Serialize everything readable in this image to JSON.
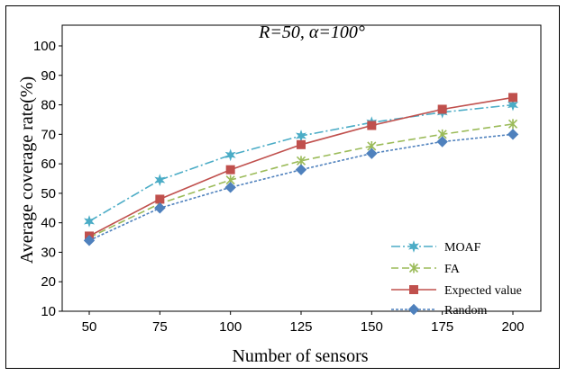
{
  "chart_data": {
    "type": "line",
    "title": "R=50, α=100°",
    "xlabel": "Number of sensors",
    "ylabel": "Average coverage rate(%)",
    "x": [
      50,
      75,
      100,
      125,
      150,
      175,
      200
    ],
    "ylim": [
      10,
      100
    ],
    "yticks": [
      10,
      20,
      30,
      40,
      50,
      60,
      70,
      80,
      90,
      100
    ],
    "grid": false,
    "legend_position": "bottom-right",
    "series": [
      {
        "name": "MOAF",
        "values": [
          40.5,
          54.5,
          63,
          69.5,
          74,
          77.5,
          80
        ],
        "color": "#4bacc6",
        "marker": "star",
        "dash": "dash-dot"
      },
      {
        "name": "FA",
        "values": [
          35,
          46.5,
          54.5,
          61,
          66,
          70,
          73.5
        ],
        "color": "#9bbb59",
        "marker": "x-star",
        "dash": "dashed"
      },
      {
        "name": "Expected value",
        "values": [
          35.5,
          48,
          58,
          66.5,
          73,
          78.5,
          82.5
        ],
        "color": "#c0504d",
        "marker": "square",
        "dash": "solid"
      },
      {
        "name": "Random",
        "values": [
          34,
          45,
          52,
          58,
          63.5,
          67.5,
          70
        ],
        "color": "#4f81bd",
        "marker": "diamond",
        "dash": "dotted"
      }
    ]
  }
}
